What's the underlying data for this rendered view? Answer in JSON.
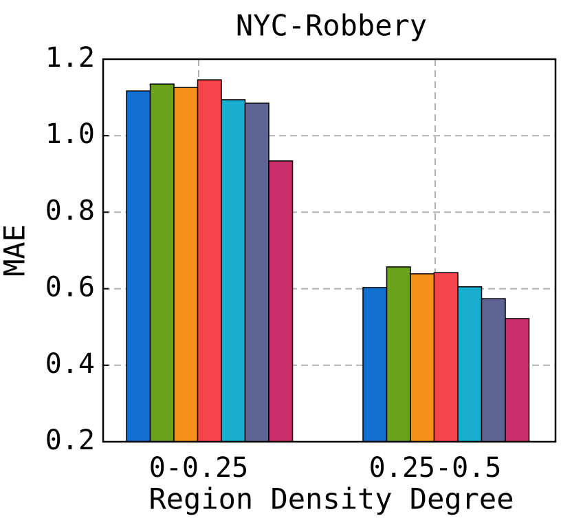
{
  "chart_data": {
    "type": "bar",
    "title": "NYC-Robbery",
    "x_label": "Region Density Degree",
    "y_label": "MAE",
    "categories": [
      "0-0.25",
      "0.25-0.5"
    ],
    "series": [
      {
        "color": "#1170d0",
        "values": [
          1.117,
          0.603
        ]
      },
      {
        "color": "#6aa31a",
        "values": [
          1.135,
          0.657
        ]
      },
      {
        "color": "#f5901a",
        "values": [
          1.126,
          0.639
        ]
      },
      {
        "color": "#f5454a",
        "values": [
          1.146,
          0.642
        ]
      },
      {
        "color": "#19aed0",
        "values": [
          1.094,
          0.605
        ]
      },
      {
        "color": "#5e6594",
        "values": [
          1.085,
          0.574
        ]
      },
      {
        "color": "#cc2e6c",
        "values": [
          0.934,
          0.522
        ]
      }
    ],
    "ylim": [
      0.2,
      1.2
    ],
    "yticks": [
      0.2,
      0.4,
      0.6,
      0.8,
      {
        "value": 1,
        "label": "1.0"
      },
      1.2
    ],
    "grid": true
  }
}
